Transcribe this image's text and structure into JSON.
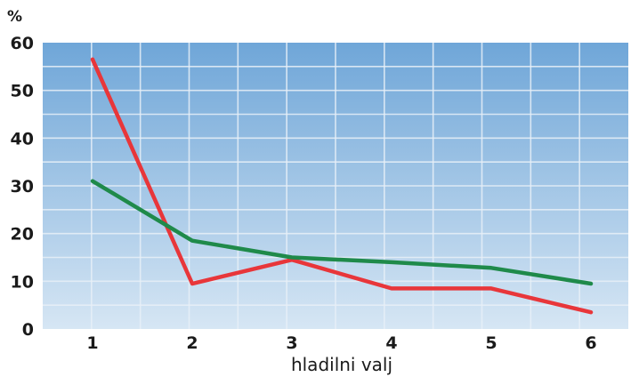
{
  "chart_data": {
    "type": "line",
    "x": [
      1,
      2,
      3,
      4,
      5,
      6
    ],
    "series": [
      {
        "values": [
          56.5,
          9.5,
          14.5,
          8.5,
          8.5,
          3.5
        ],
        "color": "#e8363a"
      },
      {
        "values": [
          31,
          18.5,
          15,
          14,
          12.8,
          9.5
        ],
        "color": "#1f8a4a"
      }
    ],
    "ylim": [
      0,
      60
    ],
    "yticks": [
      "0",
      "10",
      "20",
      "30",
      "40",
      "50",
      "60"
    ],
    "xticks": [
      "1",
      "2",
      "3",
      "4",
      "5",
      "6"
    ],
    "y_unit": "%",
    "xlabel": "hladilni valj",
    "grid": true,
    "plot_gradient": [
      "#6fa6d8",
      "#d6e6f4"
    ]
  }
}
